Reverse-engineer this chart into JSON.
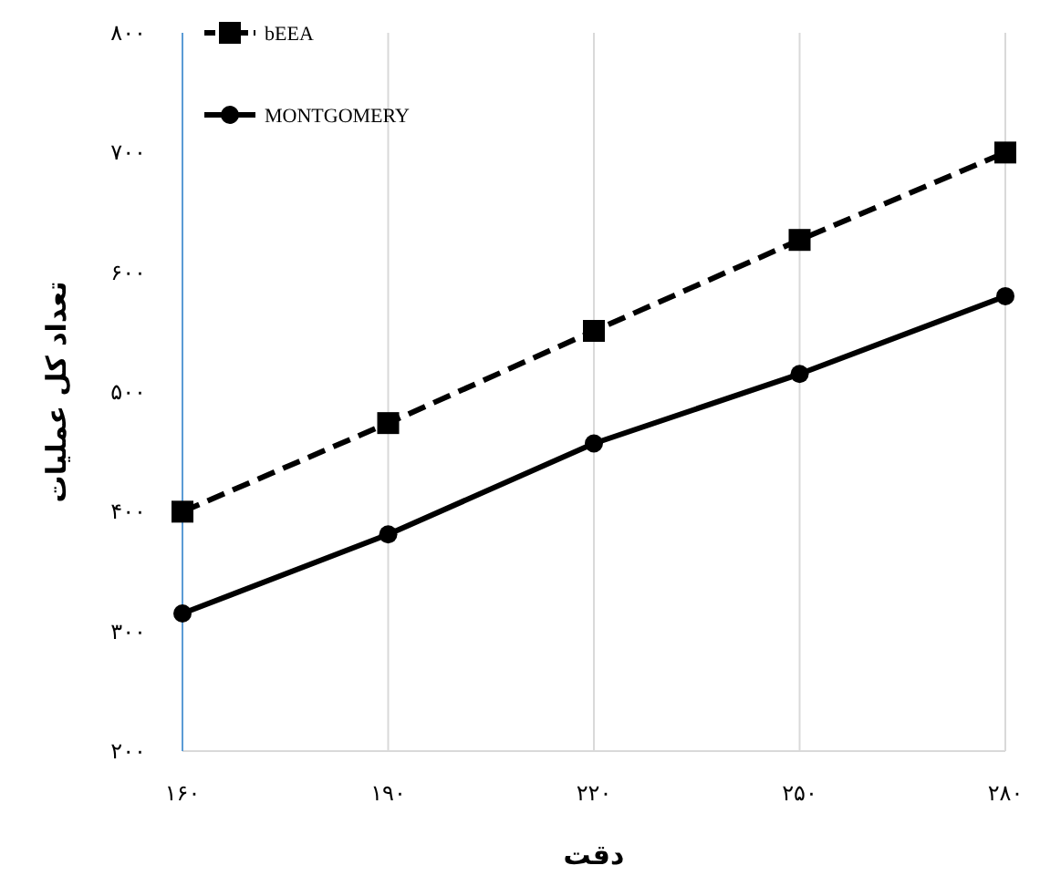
{
  "chart_data": {
    "type": "line",
    "xlabel": "دقت",
    "ylabel": "تعداد کل عملیات",
    "x": [
      160,
      190,
      220,
      250,
      280
    ],
    "series": [
      {
        "name": "bEEA",
        "color": "#000000",
        "values": [
          400,
          474,
          551,
          627,
          700
        ],
        "marker": "square",
        "line_style": "dashed"
      },
      {
        "name": "MONTGOMERY",
        "color": "#000000",
        "values": [
          315,
          381,
          457,
          515,
          580
        ],
        "marker": "circle",
        "line_style": "solid"
      }
    ],
    "xlim": [
      160,
      280
    ],
    "ylim": [
      200,
      800
    ],
    "xticks": [
      {
        "value": 160,
        "label": "۱۶۰"
      },
      {
        "value": 190,
        "label": "۱۹۰"
      },
      {
        "value": 220,
        "label": "۲۲۰"
      },
      {
        "value": 250,
        "label": "۲۵۰"
      },
      {
        "value": 280,
        "label": "۲۸۰"
      }
    ],
    "yticks": [
      {
        "value": 200,
        "label": "۲۰۰"
      },
      {
        "value": 300,
        "label": "۳۰۰"
      },
      {
        "value": 400,
        "label": "۴۰۰"
      },
      {
        "value": 500,
        "label": "۵۰۰"
      },
      {
        "value": 600,
        "label": "۶۰۰"
      },
      {
        "value": 700,
        "label": "۷۰۰"
      },
      {
        "value": 800,
        "label": "۸۰۰"
      }
    ],
    "grid": "x",
    "legend": "top left"
  }
}
